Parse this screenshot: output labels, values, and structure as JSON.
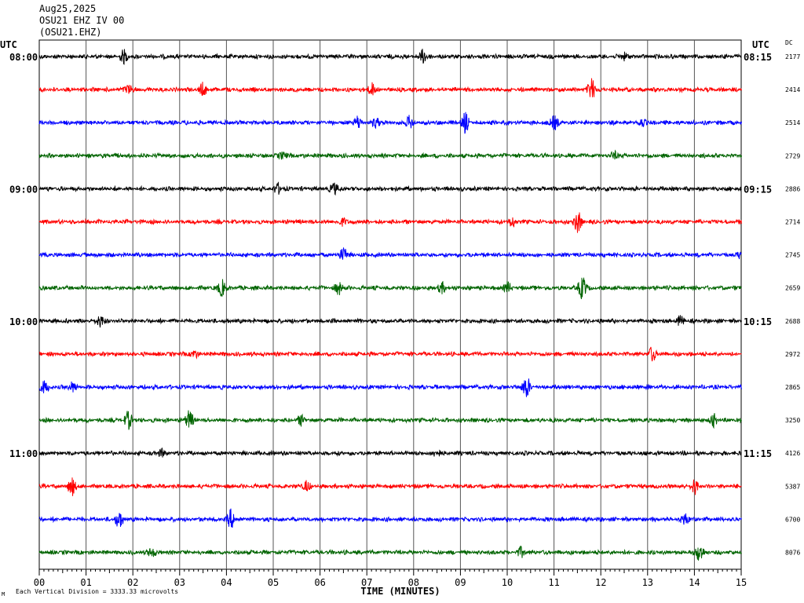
{
  "header": {
    "date": "Aug25,2025",
    "station_line": "OSU21 EHZ IV 00",
    "channel_code": "(OSU21.EHZ)"
  },
  "utc_left": "UTC",
  "utc_right": "UTC",
  "dc_label": "DC",
  "footnote": "Each Vertical Division = 3333.33 microvolts",
  "corner_mark": "M",
  "colors": {
    "black": "#000000",
    "red": "#ff0000",
    "blue": "#0000ff",
    "green": "#006400",
    "grid": "#000000"
  },
  "chart_data": {
    "type": "line",
    "title": "OSU21 EHZ IV 00",
    "xlabel": "TIME (MINUTES)",
    "ylabel": "",
    "xlim": [
      0,
      15
    ],
    "x_ticks": [
      "00",
      "01",
      "02",
      "03",
      "04",
      "05",
      "06",
      "07",
      "08",
      "09",
      "10",
      "11",
      "12",
      "13",
      "14",
      "15"
    ],
    "grid": true,
    "left_time_labels": [
      {
        "row": 0,
        "text": "08:00"
      },
      {
        "row": 4,
        "text": "09:00"
      },
      {
        "row": 8,
        "text": "10:00"
      },
      {
        "row": 12,
        "text": "11:00"
      }
    ],
    "right_time_labels": [
      {
        "row": 0,
        "text": "08:15"
      },
      {
        "row": 4,
        "text": "09:15"
      },
      {
        "row": 8,
        "text": "10:15"
      },
      {
        "row": 12,
        "text": "11:15"
      }
    ],
    "series": [
      {
        "dc": "2177",
        "color": "black",
        "events": [
          {
            "t": 1.8,
            "a": 0.5
          },
          {
            "t": 8.2,
            "a": 0.6
          },
          {
            "t": 12.5,
            "a": 0.3
          }
        ]
      },
      {
        "dc": "2414",
        "color": "red",
        "events": [
          {
            "t": 1.9,
            "a": 0.4
          },
          {
            "t": 3.5,
            "a": 0.5
          },
          {
            "t": 7.1,
            "a": 0.5
          },
          {
            "t": 11.8,
            "a": 0.9
          }
        ]
      },
      {
        "dc": "2514",
        "color": "blue",
        "events": [
          {
            "t": 6.8,
            "a": 0.5
          },
          {
            "t": 7.2,
            "a": 0.4
          },
          {
            "t": 7.9,
            "a": 0.5
          },
          {
            "t": 9.1,
            "a": 0.8
          },
          {
            "t": 11.0,
            "a": 0.6
          },
          {
            "t": 12.9,
            "a": 0.3
          }
        ]
      },
      {
        "dc": "2729",
        "color": "green",
        "events": [
          {
            "t": 5.2,
            "a": 0.3
          },
          {
            "t": 12.3,
            "a": 0.3
          }
        ]
      },
      {
        "dc": "2886",
        "color": "black",
        "events": [
          {
            "t": 5.1,
            "a": 0.4
          },
          {
            "t": 6.3,
            "a": 0.5
          }
        ]
      },
      {
        "dc": "2714",
        "color": "red",
        "events": [
          {
            "t": 6.5,
            "a": 0.3
          },
          {
            "t": 10.1,
            "a": 0.4
          },
          {
            "t": 11.5,
            "a": 0.9
          }
        ]
      },
      {
        "dc": "2745",
        "color": "blue",
        "events": [
          {
            "t": 6.5,
            "a": 0.6
          },
          {
            "t": 15.0,
            "a": 0.3
          }
        ]
      },
      {
        "dc": "2659",
        "color": "green",
        "events": [
          {
            "t": 3.9,
            "a": 0.7
          },
          {
            "t": 6.4,
            "a": 0.5
          },
          {
            "t": 8.6,
            "a": 0.4
          },
          {
            "t": 10.0,
            "a": 0.4
          },
          {
            "t": 11.6,
            "a": 1.0
          }
        ]
      },
      {
        "dc": "2688",
        "color": "black",
        "events": [
          {
            "t": 1.3,
            "a": 0.5
          },
          {
            "t": 13.7,
            "a": 0.4
          }
        ]
      },
      {
        "dc": "2972",
        "color": "red",
        "events": [
          {
            "t": 3.3,
            "a": 0.3
          },
          {
            "t": 13.1,
            "a": 0.6
          }
        ]
      },
      {
        "dc": "2865",
        "color": "blue",
        "events": [
          {
            "t": 0.1,
            "a": 0.5
          },
          {
            "t": 0.7,
            "a": 0.4
          },
          {
            "t": 10.4,
            "a": 0.9
          }
        ]
      },
      {
        "dc": "3250",
        "color": "green",
        "events": [
          {
            "t": 1.9,
            "a": 0.7
          },
          {
            "t": 3.2,
            "a": 0.8
          },
          {
            "t": 5.6,
            "a": 0.4
          },
          {
            "t": 14.4,
            "a": 0.5
          }
        ]
      },
      {
        "dc": "4126",
        "color": "black",
        "events": [
          {
            "t": 2.6,
            "a": 0.3
          },
          {
            "t": 8.5,
            "a": 0.3
          }
        ]
      },
      {
        "dc": "5387",
        "color": "red",
        "events": [
          {
            "t": 0.7,
            "a": 0.7
          },
          {
            "t": 5.7,
            "a": 0.4
          },
          {
            "t": 14.0,
            "a": 0.6
          }
        ]
      },
      {
        "dc": "6700",
        "color": "blue",
        "events": [
          {
            "t": 1.7,
            "a": 0.7
          },
          {
            "t": 4.1,
            "a": 0.8
          },
          {
            "t": 13.8,
            "a": 0.5
          }
        ]
      },
      {
        "dc": "8076",
        "color": "green",
        "events": [
          {
            "t": 2.4,
            "a": 0.4
          },
          {
            "t": 10.3,
            "a": 0.4
          },
          {
            "t": 14.1,
            "a": 0.8
          }
        ]
      }
    ]
  }
}
